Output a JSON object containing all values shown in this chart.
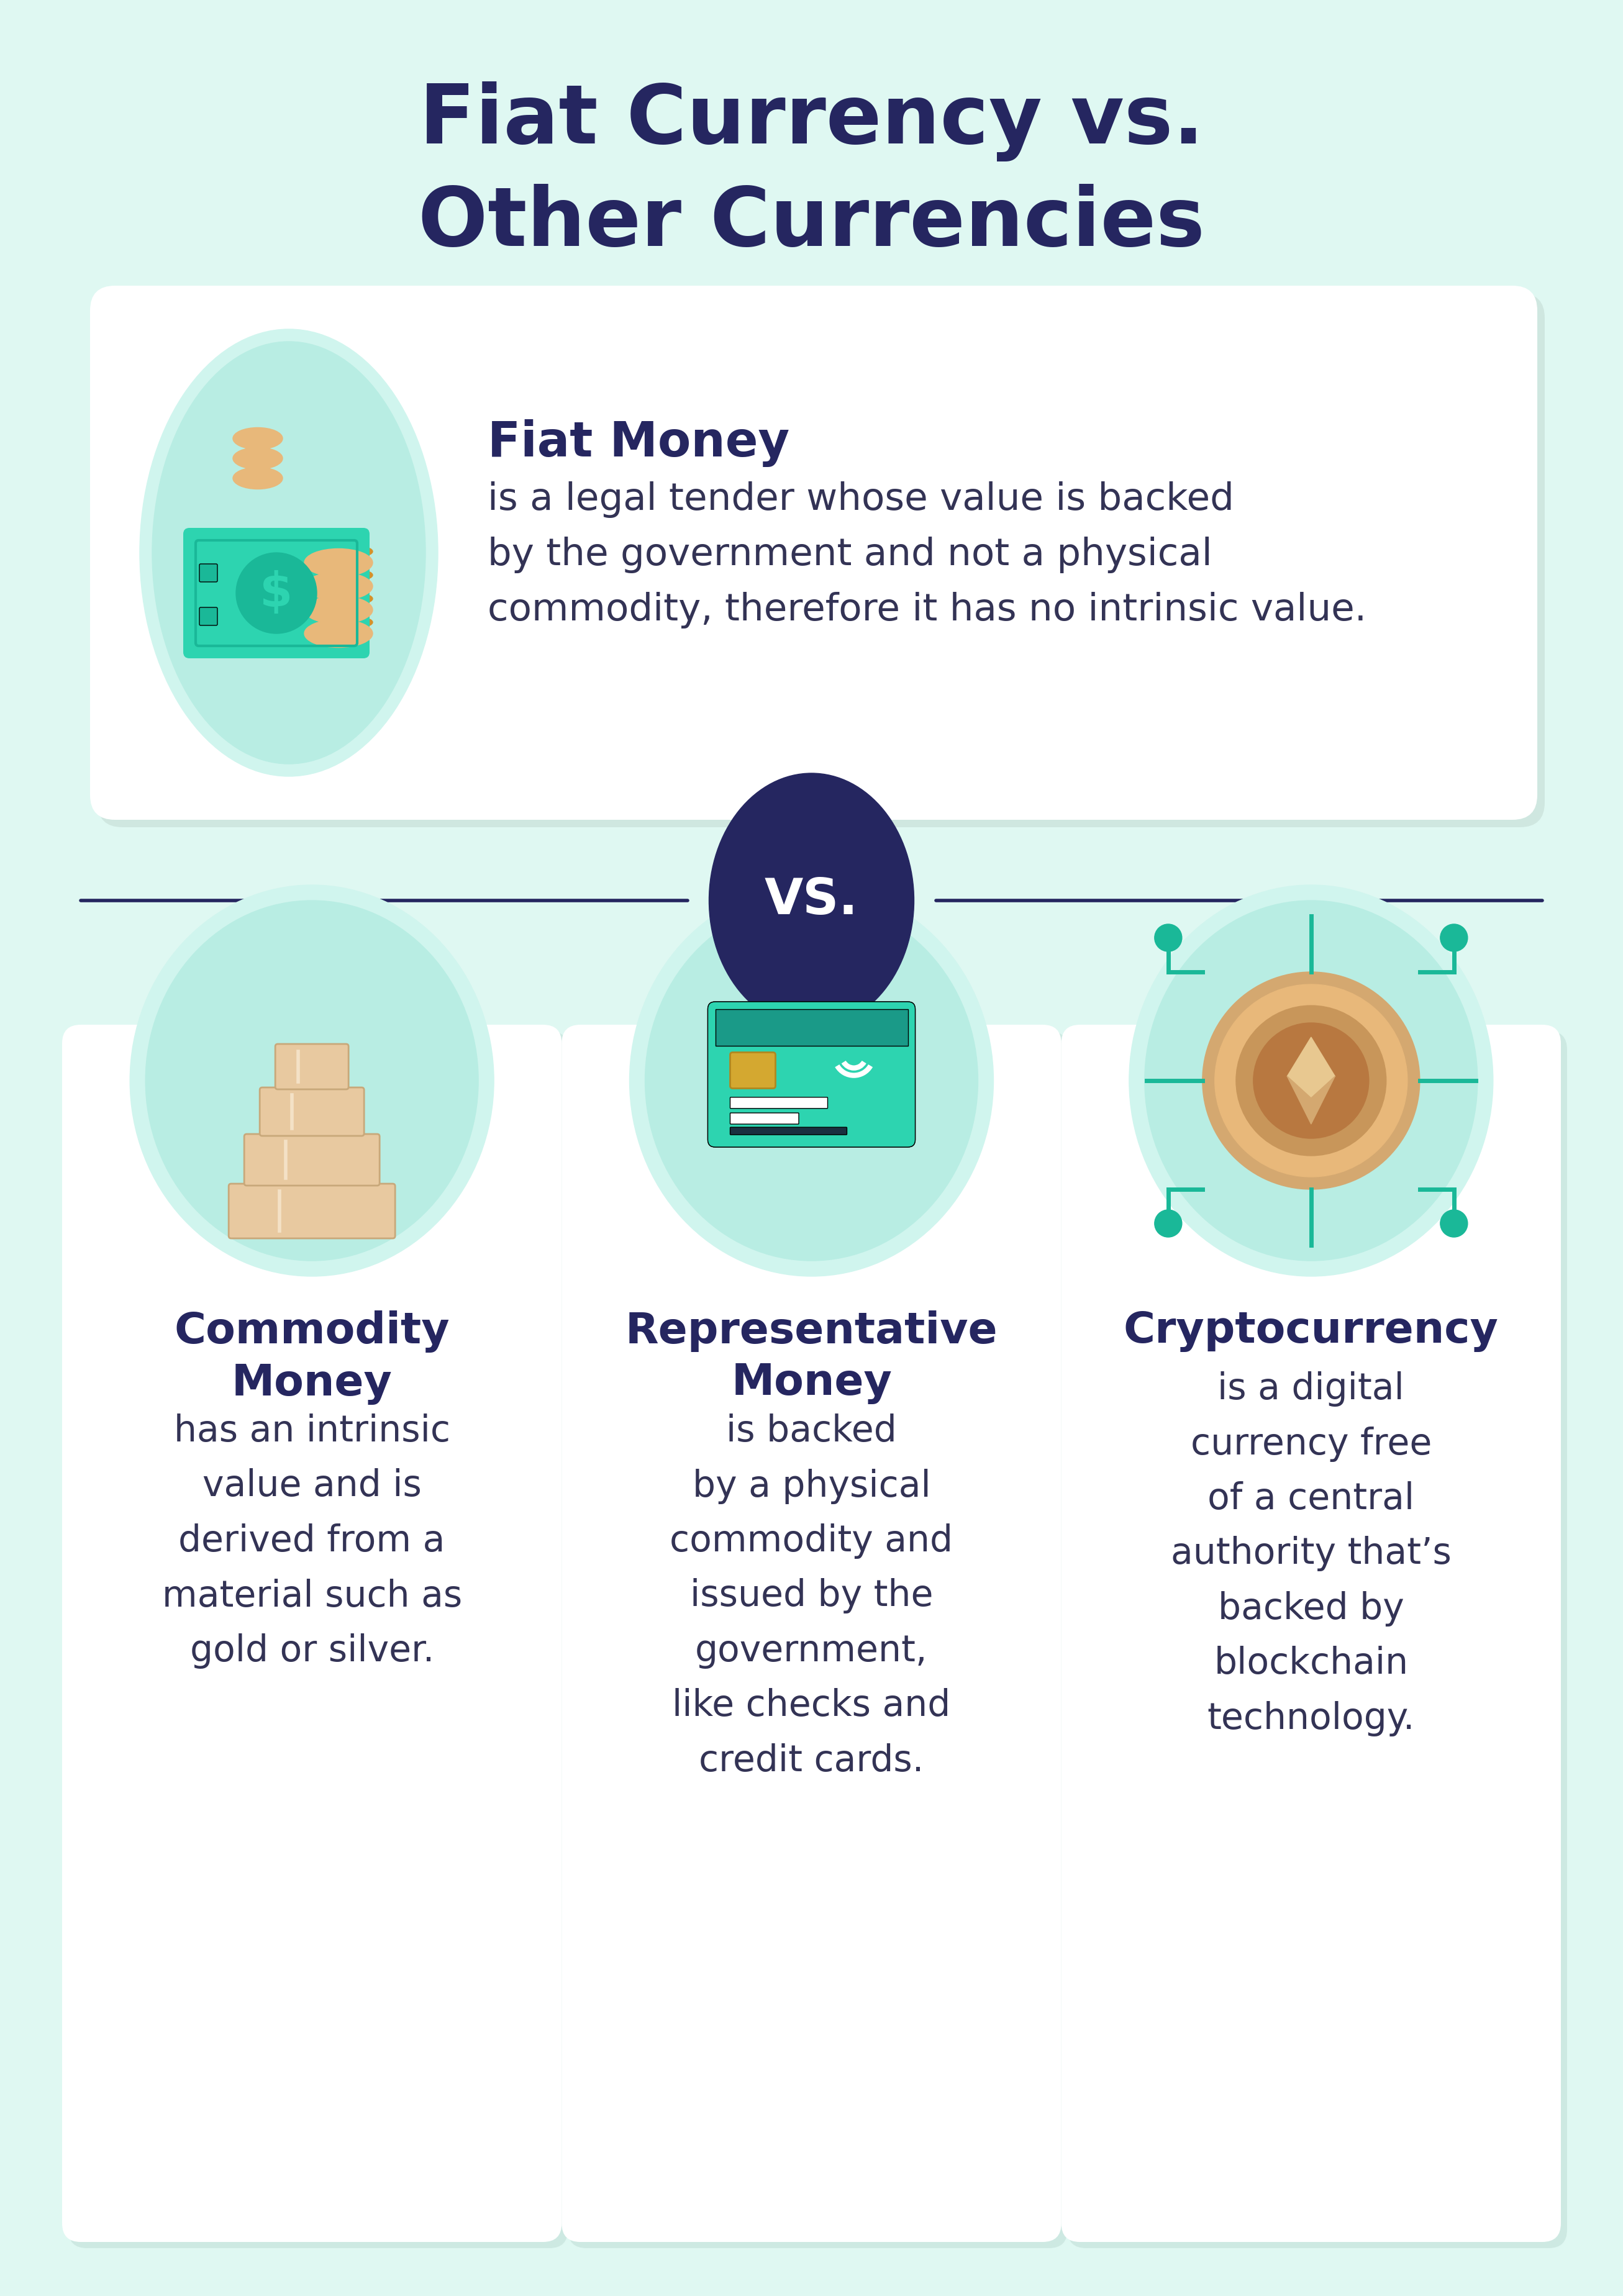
{
  "bg_color": "#dff8f2",
  "title_line1": "Fiat Currency vs.",
  "title_line2": "Other Currencies",
  "title_color": "#252660",
  "title_fontsize": 95,
  "card_bg": "#ffffff",
  "circle_bg": "#b8ede3",
  "circle_bg_light": "#d0f5ee",
  "dark_navy": "#252660",
  "fiat_title": "Fiat Money",
  "fiat_text": "is a legal tender whose value is backed\nby the government and not a physical\ncommodity, therefore it has no intrinsic value.",
  "vs_text": "VS.",
  "bottom_cards": [
    {
      "title": "Commodity\nMoney",
      "text": "has an intrinsic\nvalue and is\nderived from a\nmaterial such as\ngold or silver."
    },
    {
      "title": "Representative\nMoney",
      "text": "is backed\nby a physical\ncommodity and\nissued by the\ngovernment,\nlike checks and\ncredit cards."
    },
    {
      "title": "Cryptocurrency",
      "text": "is a digital\ncurrency free\nof a central\nauthority that’s\nbacked by\nblockchain\ntechnology."
    }
  ],
  "text_color_dark": "#252660",
  "text_color_body": "#333355",
  "teal": "#2dd4b0",
  "teal_dark": "#1ab898",
  "gold": "#e8b87a",
  "gold_dark": "#d4922a",
  "tan": "#e8c9a0"
}
